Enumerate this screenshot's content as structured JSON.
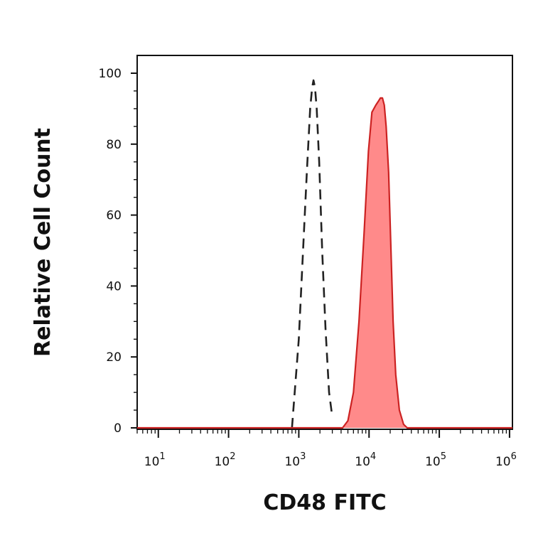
{
  "chart_data": {
    "type": "area",
    "title": "",
    "xlabel": "CD48 FITC",
    "ylabel": "Relative Cell Count",
    "x_scale": "log",
    "xlim": [
      5,
      1100000
    ],
    "ylim": [
      0,
      105
    ],
    "x_ticks": [
      {
        "base": "10",
        "exp": "1",
        "value": 10
      },
      {
        "base": "10",
        "exp": "2",
        "value": 100
      },
      {
        "base": "10",
        "exp": "3",
        "value": 1000
      },
      {
        "base": "10",
        "exp": "4",
        "value": 10000
      },
      {
        "base": "10",
        "exp": "5",
        "value": 100000
      },
      {
        "base": "10",
        "exp": "6",
        "value": 1000000
      }
    ],
    "y_ticks": [
      "0",
      "20",
      "40",
      "60",
      "80",
      "100"
    ],
    "grid": false,
    "legend": "none",
    "series": [
      {
        "style": "dashed",
        "color": "#222222",
        "fill": "none",
        "x": [
          800,
          1000,
          1150,
          1300,
          1450,
          1550,
          1620,
          1700,
          1800,
          1950,
          2150,
          2400,
          2700,
          3000
        ],
        "y": [
          0,
          25,
          50,
          72,
          90,
          96,
          98,
          96,
          90,
          75,
          50,
          28,
          10,
          3
        ]
      },
      {
        "style": "solid",
        "color": "#cc2222",
        "fill": "#ff8a8a",
        "x": [
          5,
          500,
          4200,
          5000,
          6000,
          7200,
          8500,
          9800,
          11000,
          12500,
          13500,
          14500,
          15500,
          16500,
          17500,
          19000,
          20500,
          22000,
          24000,
          27000,
          31000,
          35000,
          1100000
        ],
        "y": [
          0,
          0,
          0,
          2,
          10,
          30,
          55,
          78,
          89,
          91,
          92,
          93,
          93,
          91,
          85,
          72,
          50,
          30,
          15,
          5,
          1,
          0,
          0
        ]
      }
    ]
  }
}
